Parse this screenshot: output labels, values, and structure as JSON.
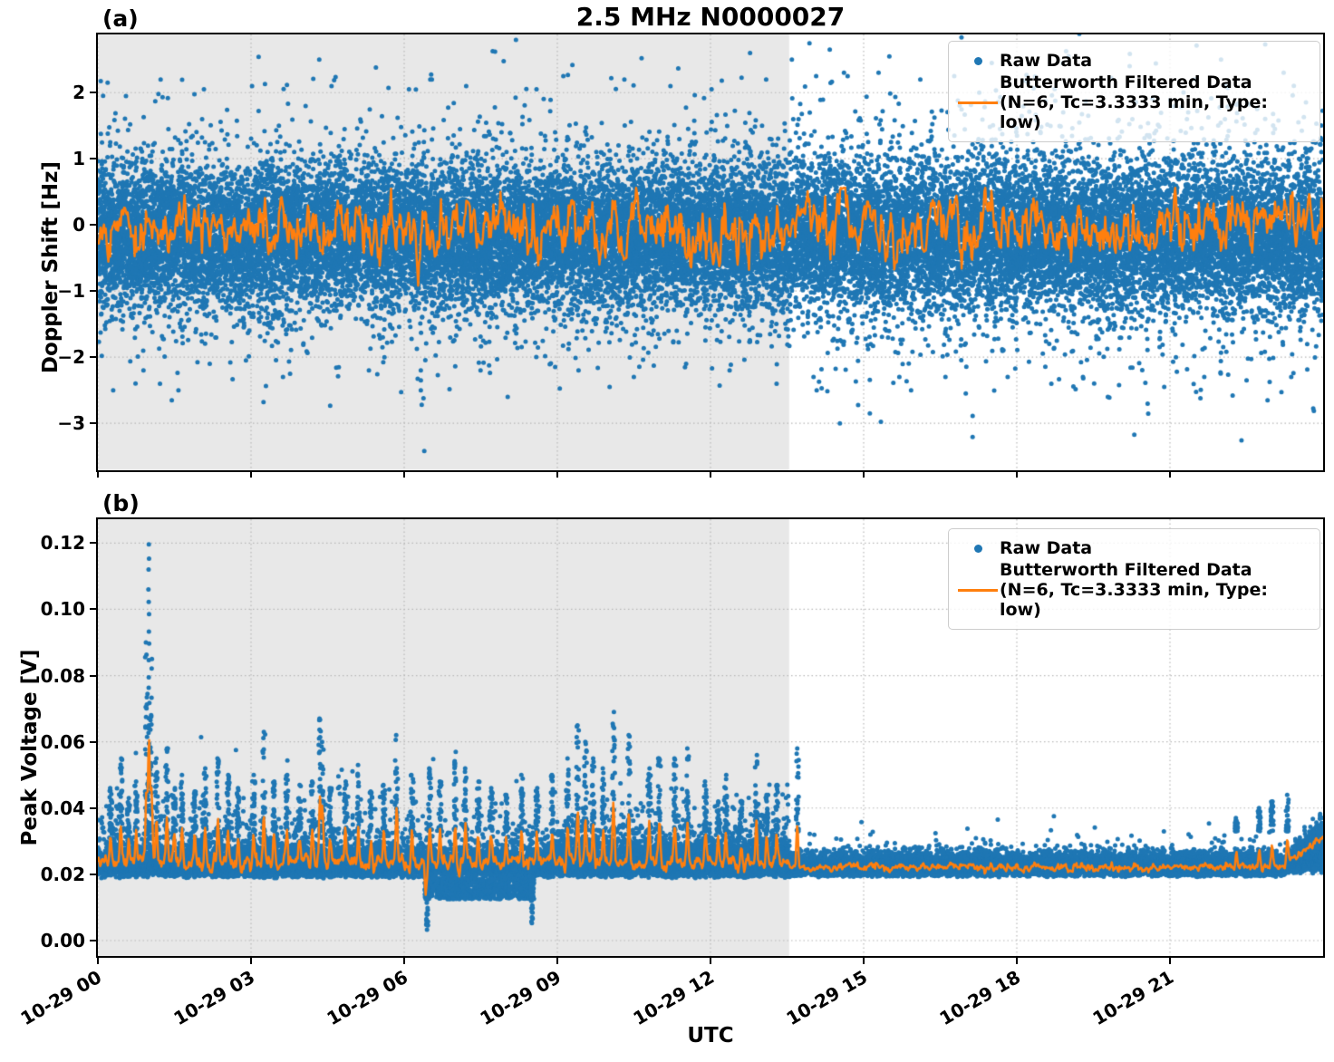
{
  "figure": {
    "title": "2.5 MHz N0000027",
    "xlabel": "UTC",
    "panel_a_tag": "(a)",
    "panel_b_tag": "(b)",
    "legend": {
      "raw_label": "Raw Data",
      "filtered_label_line1": "Butterworth Filtered Data",
      "filtered_label_line2": "(N=6, Tc=3.3333 min, Type: low)"
    },
    "colors": {
      "raw": "#1f77b4",
      "filtered": "#ff7f0e",
      "shaded_region": "#e8e8e8",
      "grid": "#b8b8b8",
      "axis": "#000000",
      "legend_border": "#cccccc"
    }
  },
  "chart_data": [
    {
      "panel": "a",
      "type": "scatter",
      "ylabel": "Doppler Shift [Hz]",
      "x_unit": "hours since 10-29 00:00 UTC",
      "xlim_hours": [
        0,
        24
      ],
      "ylim": [
        -3.71,
        2.88
      ],
      "yticks": [
        {
          "value": 2,
          "label": "2"
        },
        {
          "value": 1,
          "label": "1"
        },
        {
          "value": 0,
          "label": "0"
        },
        {
          "value": -1,
          "label": "−1"
        },
        {
          "value": -2,
          "label": "−2"
        },
        {
          "value": -3,
          "label": "−3"
        }
      ],
      "xticks": [
        {
          "hours": 0,
          "label": "10-29 00"
        },
        {
          "hours": 3,
          "label": "10-29 03"
        },
        {
          "hours": 6,
          "label": "10-29 06"
        },
        {
          "hours": 9,
          "label": "10-29 09"
        },
        {
          "hours": 12,
          "label": "10-29 12"
        },
        {
          "hours": 15,
          "label": "10-29 15"
        },
        {
          "hours": 18,
          "label": "10-29 18"
        },
        {
          "hours": 21,
          "label": "10-29 21"
        }
      ],
      "xticklabels_visible": false,
      "grid": "dotted",
      "shaded_region_hours": [
        0,
        13.54
      ],
      "legend_position": "upper right",
      "series": {
        "raw": {
          "name": "Raw Data",
          "marker_diameter_px": 5,
          "band_center_hz": -0.17,
          "dense_band_hz": [
            -1.45,
            1.15
          ],
          "scatter_model": {
            "n_points": 30000,
            "sigmas": [
              0.5,
              0.75,
              1.05
            ],
            "weights": [
              0.8,
              0.15,
              0.05
            ],
            "weights_after_shade": [
              0.74,
              0.16,
              0.1
            ]
          },
          "outliers_t_hz": [
            [
              0.2,
              2.15
            ],
            [
              0.55,
              1.95
            ],
            [
              1.2,
              2.2
            ],
            [
              2.1,
              2.05
            ],
            [
              3.05,
              2.1
            ],
            [
              4.35,
              2.5
            ],
            [
              4.6,
              2.1
            ],
            [
              5.45,
              2.38
            ],
            [
              6.1,
              2.05
            ],
            [
              6.55,
              2.2
            ],
            [
              7.2,
              2.1
            ],
            [
              7.8,
              2.62
            ],
            [
              8.6,
              2.05
            ],
            [
              9.1,
              2.25
            ],
            [
              10.3,
              2.2
            ],
            [
              11.2,
              2.1
            ],
            [
              12.0,
              2.05
            ],
            [
              12.75,
              2.6
            ],
            [
              13.1,
              2.2
            ],
            [
              13.6,
              2.5
            ],
            [
              14.35,
              2.65
            ],
            [
              14.6,
              2.3
            ],
            [
              15.3,
              2.3
            ],
            [
              16.1,
              2.2
            ],
            [
              16.8,
              2.25
            ],
            [
              17.5,
              2.45
            ],
            [
              18.2,
              2.15
            ],
            [
              19.0,
              2.55
            ],
            [
              20.2,
              2.4
            ],
            [
              21.5,
              2.2
            ],
            [
              22.0,
              2.5
            ],
            [
              23.2,
              2.3
            ],
            [
              0.3,
              -2.5
            ],
            [
              0.9,
              -2.2
            ],
            [
              1.55,
              -2.5
            ],
            [
              2.2,
              -2.1
            ],
            [
              2.9,
              -2.05
            ],
            [
              3.6,
              -2.3
            ],
            [
              4.7,
              -2.15
            ],
            [
              5.3,
              -2.2
            ],
            [
              6.32,
              -2.2
            ],
            [
              6.33,
              -2.35
            ],
            [
              6.34,
              -2.5
            ],
            [
              6.35,
              -2.62
            ],
            [
              6.36,
              -2.72
            ],
            [
              6.37,
              -3.42
            ],
            [
              7.5,
              -2.2
            ],
            [
              8.0,
              -2.6
            ],
            [
              9.4,
              -2.2
            ],
            [
              10.5,
              -2.3
            ],
            [
              11.5,
              -2.15
            ],
            [
              12.4,
              -2.2
            ],
            [
              13.3,
              -2.4
            ],
            [
              14.1,
              -2.5
            ],
            [
              15.1,
              -2.85
            ],
            [
              15.9,
              -2.5
            ],
            [
              16.6,
              -2.3
            ],
            [
              17.0,
              -2.55
            ],
            [
              17.8,
              -2.3
            ],
            [
              18.7,
              -2.4
            ],
            [
              19.3,
              -2.3
            ],
            [
              19.8,
              -2.6
            ],
            [
              20.9,
              -2.45
            ],
            [
              21.7,
              -2.3
            ],
            [
              22.5,
              -2.35
            ],
            [
              23.4,
              -2.3
            ]
          ]
        },
        "filtered": {
          "name": "Butterworth Filtered Data (N=6, Tc=3.3333 min, Type: low)",
          "mean_hz": -0.06,
          "fluctuation_sd_hz": 0.27,
          "model": {
            "n_points": 1400,
            "ar": 0.72,
            "step": 0.17
          },
          "dip": {
            "t_hours": 6.27,
            "depth_hz": 0.79,
            "width_hours": 0.03
          }
        }
      }
    },
    {
      "panel": "b",
      "type": "scatter",
      "ylabel": "Peak Voltage [V]",
      "x_unit": "hours since 10-29 00:00 UTC",
      "xlim_hours": [
        0,
        24
      ],
      "ylim": [
        -0.00465,
        0.1272
      ],
      "yticks": [
        {
          "value": 0.12,
          "label": "0.12"
        },
        {
          "value": 0.1,
          "label": "0.10"
        },
        {
          "value": 0.08,
          "label": "0.08"
        },
        {
          "value": 0.06,
          "label": "0.06"
        },
        {
          "value": 0.04,
          "label": "0.04"
        },
        {
          "value": 0.02,
          "label": "0.02"
        },
        {
          "value": 0.0,
          "label": "0.00"
        }
      ],
      "xticks": [
        {
          "hours": 0,
          "label": "10-29 00"
        },
        {
          "hours": 3,
          "label": "10-29 03"
        },
        {
          "hours": 6,
          "label": "10-29 06"
        },
        {
          "hours": 9,
          "label": "10-29 09"
        },
        {
          "hours": 12,
          "label": "10-29 12"
        },
        {
          "hours": 15,
          "label": "10-29 15"
        },
        {
          "hours": 18,
          "label": "10-29 18"
        },
        {
          "hours": 21,
          "label": "10-29 21"
        }
      ],
      "xticklabels_visible": true,
      "grid": "dotted",
      "shaded_region_hours": [
        0,
        13.54
      ],
      "legend_position": "upper right",
      "series": {
        "raw": {
          "name": "Raw Data",
          "marker_diameter_px": 5,
          "scatter_model": {
            "n_points": 30000,
            "base": {
              "lower": 0.0197,
              "half_sigma": 0.0033,
              "tail_prob": 0.22,
              "tail_mean": 0.0042
            },
            "busy_hours": [
              8.9,
              13.54
            ],
            "busy_tail_prob": 0.34,
            "late": {
              "start": 13.54,
              "lower": 0.02,
              "half_sigma": 0.0025,
              "tail_prob": 0.08,
              "tail_mean": 0.0018
            },
            "lower_fuzz": {
              "prob": 0.45,
              "span": 0.0017
            }
          },
          "dip_band": {
            "start": 6.4,
            "end": 8.55,
            "prob": 0.3,
            "low": 0.0125,
            "span": 0.0065,
            "deep_columns": [
              [
                6.45,
                0.002
              ],
              [
                8.5,
                0.005
              ]
            ]
          },
          "spikes_t_peakv": [
            [
              0.25,
              0.046
            ],
            [
              0.45,
              0.055
            ],
            [
              0.6,
              0.043
            ],
            [
              0.75,
              0.048
            ],
            [
              0.95,
              0.09
            ],
            [
              1.0,
              0.065
            ],
            [
              1.05,
              0.085
            ],
            [
              1.15,
              0.055
            ],
            [
              1.35,
              0.058
            ],
            [
              1.5,
              0.046
            ],
            [
              1.65,
              0.05
            ],
            [
              1.9,
              0.045
            ],
            [
              2.1,
              0.052
            ],
            [
              2.35,
              0.055
            ],
            [
              2.55,
              0.05
            ],
            [
              2.75,
              0.046
            ],
            [
              3.05,
              0.05
            ],
            [
              3.25,
              0.063
            ],
            [
              3.45,
              0.048
            ],
            [
              3.7,
              0.05
            ],
            [
              3.95,
              0.047
            ],
            [
              4.2,
              0.048
            ],
            [
              4.35,
              0.067
            ],
            [
              4.4,
              0.06
            ],
            [
              4.55,
              0.046
            ],
            [
              4.85,
              0.048
            ],
            [
              5.1,
              0.053
            ],
            [
              5.35,
              0.045
            ],
            [
              5.6,
              0.047
            ],
            [
              5.85,
              0.062
            ],
            [
              6.15,
              0.05
            ],
            [
              6.5,
              0.052
            ],
            [
              6.7,
              0.048
            ],
            [
              7.0,
              0.057
            ],
            [
              7.2,
              0.052
            ],
            [
              7.45,
              0.048
            ],
            [
              7.7,
              0.046
            ],
            [
              8.0,
              0.044
            ],
            [
              8.3,
              0.05
            ],
            [
              8.6,
              0.046
            ],
            [
              8.9,
              0.05
            ],
            [
              9.2,
              0.055
            ],
            [
              9.4,
              0.065
            ],
            [
              9.55,
              0.06
            ],
            [
              9.7,
              0.055
            ],
            [
              9.9,
              0.052
            ],
            [
              10.1,
              0.069
            ],
            [
              10.4,
              0.062
            ],
            [
              10.8,
              0.052
            ],
            [
              11.0,
              0.055
            ],
            [
              11.3,
              0.055
            ],
            [
              11.55,
              0.058
            ],
            [
              11.9,
              0.048
            ],
            [
              12.15,
              0.042
            ],
            [
              12.3,
              0.05
            ],
            [
              12.6,
              0.042
            ],
            [
              12.9,
              0.056
            ],
            [
              13.1,
              0.044
            ],
            [
              13.3,
              0.047
            ],
            [
              13.7,
              0.058
            ],
            [
              22.3,
              0.037
            ],
            [
              22.75,
              0.04
            ],
            [
              23.0,
              0.042
            ],
            [
              23.3,
              0.044
            ]
          ],
          "tall_column": {
            "t": 1.0,
            "base": 0.062,
            "top": 0.12,
            "n": 14
          },
          "end_rise": {
            "start": 23.2,
            "max_add": 0.014
          }
        },
        "filtered": {
          "name": "Butterworth Filtered Data (N=6, Tc=3.3333 min, Type: low)",
          "baseline_v": 0.0235,
          "late_baseline_v": 0.0222,
          "model": {
            "n_points": 1600,
            "ar": 0.6,
            "step": 0.0009,
            "late_step": 0.0005
          },
          "spike_response": {
            "gain": 0.42,
            "cap": 0.022,
            "width_hours": 0.025
          },
          "dip": {
            "t_hours": 6.42,
            "depth_v": 0.0095,
            "width_hours": 0.025
          },
          "end_rise": {
            "start": 23.2,
            "max_add": 0.0095
          }
        }
      }
    }
  ]
}
